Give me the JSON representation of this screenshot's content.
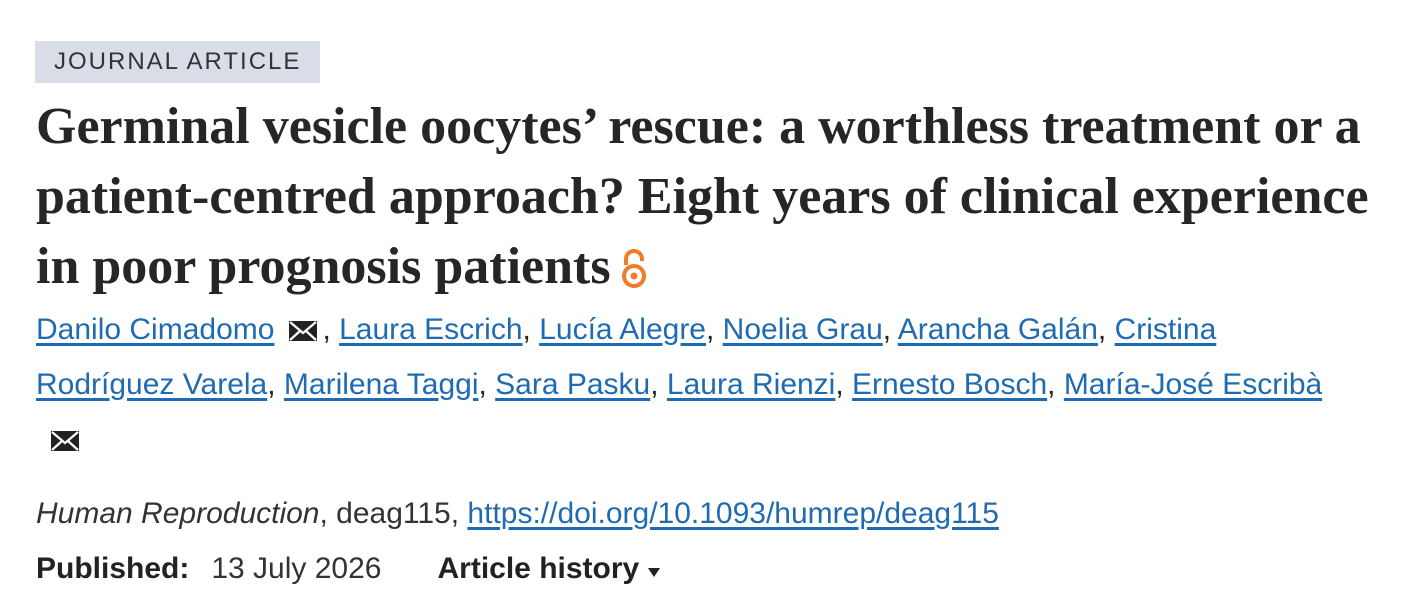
{
  "article_type": "JOURNAL ARTICLE",
  "title": "Germinal vesicle oocytes’ rescue: a worthless treatment or a patient-centred approach? Eight years of clinical experience in poor prognosis patients",
  "separator": ", ",
  "authors": [
    {
      "name": "Danilo Cimadomo",
      "email": true
    },
    {
      "name": "Laura Escrich"
    },
    {
      "name": "Lucía Alegre"
    },
    {
      "name": "Noelia Grau"
    },
    {
      "name": "Arancha Galán"
    },
    {
      "name": "Cristina Rodríguez Varela"
    },
    {
      "name": "Marilena Taggi"
    },
    {
      "name": "Sara Pasku"
    },
    {
      "name": "Laura Rienzi"
    },
    {
      "name": "Ernesto Bosch"
    },
    {
      "name": "María-José Escribà",
      "email": true
    }
  ],
  "citation": {
    "journal": "Human Reproduction",
    "article_id": "deag115",
    "doi": "https://doi.org/10.1093/humrep/deag115"
  },
  "published": {
    "label": "Published:",
    "date": "13 July 2026"
  },
  "article_history": "Article history"
}
